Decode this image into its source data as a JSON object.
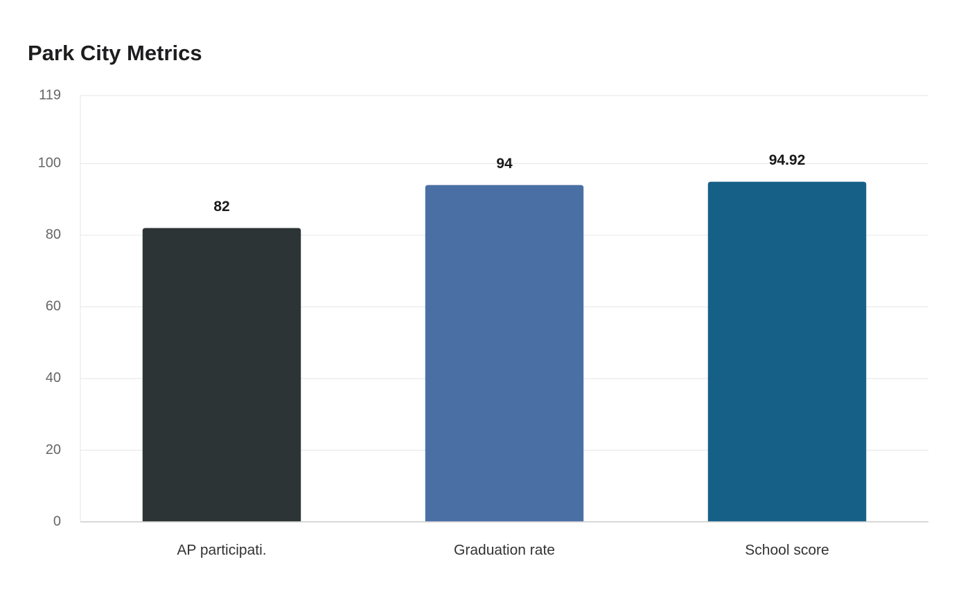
{
  "chart_data": {
    "type": "bar",
    "title": "Park City Metrics",
    "xlabel": "",
    "ylabel": "",
    "categories": [
      "AP participati.",
      "Graduation rate",
      "School score"
    ],
    "values": [
      82,
      94,
      94.92
    ],
    "value_labels": [
      "82",
      "94",
      "94.92"
    ],
    "colors": [
      "#2d3436",
      "#4a6fa5",
      "#166088"
    ],
    "ylim": [
      0,
      119
    ],
    "yticks": [
      0,
      20,
      40,
      60,
      80,
      100,
      119
    ],
    "grid": true,
    "legend": "none"
  }
}
